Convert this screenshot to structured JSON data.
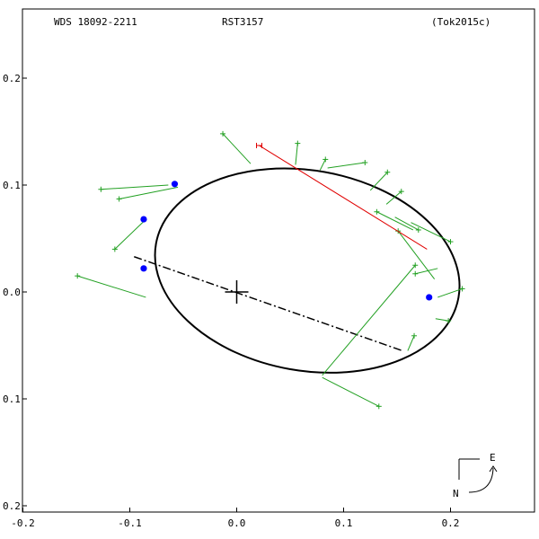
{
  "header": {
    "wds": "WDS 18092-2211",
    "disc": "RST3157",
    "ref": "(Tok2015c)"
  },
  "compass": {
    "east": "E",
    "north": "N"
  },
  "chart_data": {
    "type": "scatter",
    "title": "",
    "xlabel": "",
    "ylabel": "",
    "xlim": [
      -0.2,
      0.28
    ],
    "ylim": [
      -0.2,
      0.27
    ],
    "x_ticks": [
      {
        "v": -0.2,
        "label": "-0.2"
      },
      {
        "v": -0.1,
        "label": "-0.1"
      },
      {
        "v": 0.0,
        "label": "0.0"
      },
      {
        "v": 0.1,
        "label": "0.1"
      },
      {
        "v": 0.2,
        "label": "0.2"
      }
    ],
    "y_ticks": [
      {
        "v": 0.2,
        "label": "0.2"
      },
      {
        "v": 0.1,
        "label": "0.1"
      },
      {
        "v": 0.0,
        "label": "0.0"
      },
      {
        "v": -0.1,
        "label": "0.1"
      },
      {
        "v": -0.2,
        "label": "0.2"
      }
    ],
    "primary": [
      0,
      0
    ],
    "orbit": {
      "center": [
        0.066,
        0.02
      ],
      "rx": 0.1437,
      "ry": 0.0936,
      "rotation_deg": -10.1
    },
    "line_of_nodes": [
      [
        -0.096,
        0.033
      ],
      [
        0.155,
        -0.055
      ]
    ],
    "micrometer_obs": [
      {
        "obs": [
          0.021,
          0.137
        ],
        "calc": [
          0.178,
          0.04
        ]
      }
    ],
    "observations": [
      {
        "obs": [
          -0.013,
          0.148
        ],
        "calc": [
          0.013,
          0.12
        ]
      },
      {
        "obs": [
          0.057,
          0.139
        ],
        "calc": [
          0.055,
          0.119
        ]
      },
      {
        "obs": [
          0.083,
          0.124
        ],
        "calc": [
          0.078,
          0.114
        ]
      },
      {
        "obs": [
          0.12,
          0.121
        ],
        "calc": [
          0.085,
          0.116
        ]
      },
      {
        "obs": [
          -0.127,
          0.096
        ],
        "calc": [
          -0.064,
          0.1
        ]
      },
      {
        "obs": [
          -0.11,
          0.087
        ],
        "calc": [
          -0.055,
          0.098
        ]
      },
      {
        "obs": [
          0.141,
          0.112
        ],
        "calc": [
          0.125,
          0.095
        ]
      },
      {
        "obs": [
          0.154,
          0.094
        ],
        "calc": [
          0.14,
          0.082
        ]
      },
      {
        "obs": [
          0.131,
          0.075
        ],
        "calc": [
          0.165,
          0.058
        ]
      },
      {
        "obs": [
          0.17,
          0.058
        ],
        "calc": [
          0.148,
          0.07
        ]
      },
      {
        "obs": [
          0.2,
          0.047
        ],
        "calc": [
          0.163,
          0.065
        ]
      },
      {
        "obs": [
          0.151,
          0.057
        ],
        "calc": [
          0.185,
          0.012
        ]
      },
      {
        "obs": [
          -0.114,
          0.04
        ],
        "calc": [
          -0.087,
          0.066
        ]
      },
      {
        "obs": [
          0.167,
          0.017
        ],
        "calc": [
          0.188,
          0.022
        ]
      },
      {
        "obs": [
          -0.149,
          0.015
        ],
        "calc": [
          -0.085,
          -0.005
        ]
      },
      {
        "obs": [
          0.167,
          0.025
        ],
        "calc": [
          0.08,
          -0.078
        ]
      },
      {
        "obs": [
          0.211,
          0.003
        ],
        "calc": [
          0.188,
          -0.005
        ]
      },
      {
        "obs": [
          0.198,
          -0.027
        ],
        "calc": [
          0.186,
          -0.025
        ]
      },
      {
        "obs": [
          0.166,
          -0.041
        ],
        "calc": [
          0.16,
          -0.055
        ]
      },
      {
        "obs": [
          0.133,
          -0.107
        ],
        "calc": [
          0.08,
          -0.08
        ]
      }
    ],
    "highlight_points": [
      [
        -0.058,
        0.101
      ],
      [
        -0.087,
        0.068
      ],
      [
        -0.087,
        0.022
      ],
      [
        0.18,
        -0.005
      ]
    ],
    "colors": {
      "orbit": "#000000",
      "residual": "#22a022",
      "micrometer": "#e00000",
      "highlight": "#0000ff"
    }
  }
}
